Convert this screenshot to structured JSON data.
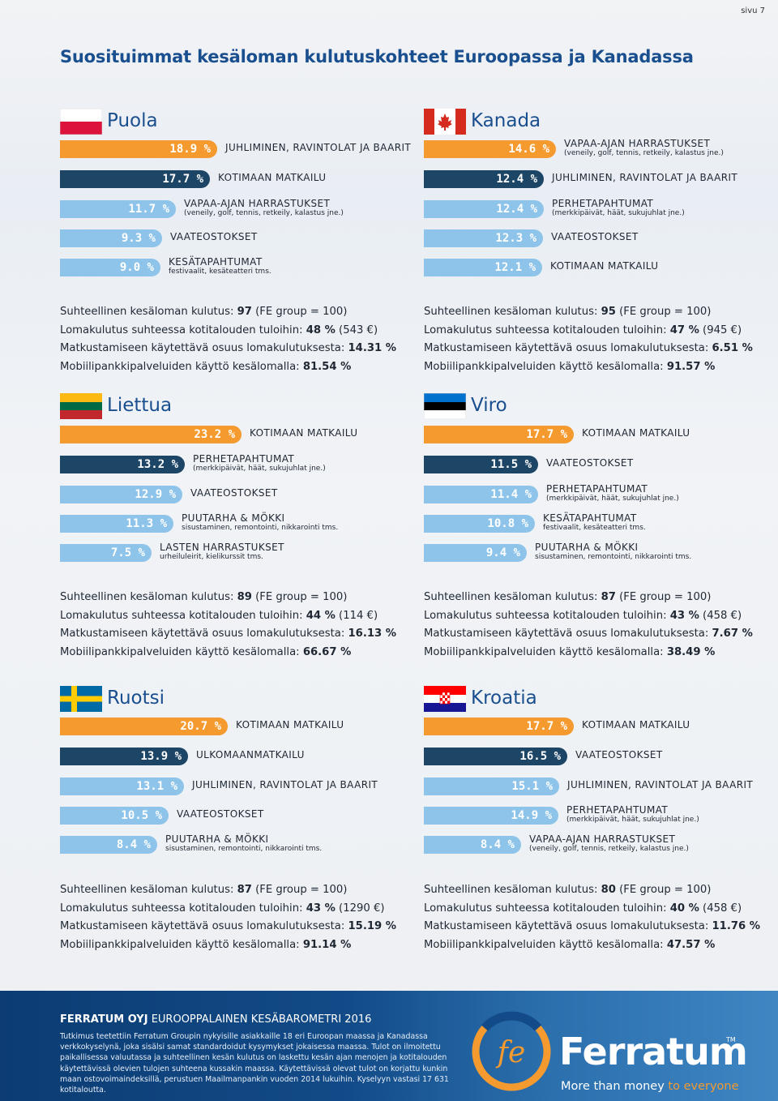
{
  "page": {
    "number": "sivu 7",
    "title": "Suosituimmat kesäloman kulutuskohteet Euroopassa ja Kanadassa"
  },
  "colors": {
    "orange": "#f59a2e",
    "navy": "#1d4566",
    "light_blue": "#8ec4ea",
    "title_blue": "#1a4f8f"
  },
  "chart_data": [
    {
      "type": "bar",
      "country": "Puola",
      "flag": "poland-flag",
      "categories": [
        "JUHLIMINEN, RAVINTOLAT JA BAARIT",
        "KOTIMAAN MATKAILU",
        "VAPAA-AJAN HARRASTUKSET",
        "VAATEOSTOKSET",
        "KESÄTAPAHTUMAT"
      ],
      "subs": [
        "",
        "",
        "(veneily, golf, tennis, retkeily, kalastus jne.)",
        "",
        "festivaalit, kesäteatteri tms."
      ],
      "values": [
        18.9,
        17.7,
        11.7,
        9.3,
        9.0
      ],
      "value_labels": [
        "18.9 %",
        "17.7 %",
        "11.7 %",
        "9.3 %",
        "9.0 %"
      ],
      "unit": "%"
    },
    {
      "type": "bar",
      "country": "Kanada",
      "flag": "canada-flag",
      "categories": [
        "VAPAA-AJAN HARRASTUKSET",
        "JUHLIMINEN, RAVINTOLAT JA BAARIT",
        "PERHETAPAHTUMAT",
        "VAATEOSTOKSET",
        "KOTIMAAN MATKAILU"
      ],
      "subs": [
        "(veneily, golf, tennis, retkeily, kalastus jne.)",
        "",
        "(merkkipäivät, häät, sukujuhlat jne.)",
        "",
        ""
      ],
      "values": [
        14.6,
        12.4,
        12.4,
        12.3,
        12.1
      ],
      "value_labels": [
        "14.6 %",
        "12.4 %",
        "12.4 %",
        "12.3 %",
        "12.1 %"
      ],
      "unit": "%"
    },
    {
      "type": "bar",
      "country": "Liettua",
      "flag": "lithuania-flag",
      "categories": [
        "KOTIMAAN MATKAILU",
        "PERHETAPAHTUMAT",
        "VAATEOSTOKSET",
        "PUUTARHA & MÖKKI",
        "LASTEN HARRASTUKSET"
      ],
      "subs": [
        "",
        "(merkkipäivät, häät, sukujuhlat jne.)",
        "",
        "sisustaminen, remontointi, nikkarointi tms.",
        "urheiluleirit, kielikurssit tms."
      ],
      "values": [
        23.2,
        13.2,
        12.9,
        11.3,
        7.5
      ],
      "value_labels": [
        "23.2 %",
        "13.2 %",
        "12.9 %",
        "11.3 %",
        "7.5 %"
      ],
      "unit": "%"
    },
    {
      "type": "bar",
      "country": "Viro",
      "flag": "estonia-flag",
      "categories": [
        "KOTIMAAN MATKAILU",
        "VAATEOSTOKSET",
        "PERHETAPAHTUMAT",
        "KESÄTAPAHTUMAT",
        "PUUTARHA & MÖKKI"
      ],
      "subs": [
        "",
        "",
        "(merkkipäivät, häät, sukujuhlat jne.)",
        "festivaalit, kesäteatteri tms.",
        "sisustaminen, remontointi, nikkarointi tms."
      ],
      "values": [
        17.7,
        11.5,
        11.4,
        10.8,
        9.4
      ],
      "value_labels": [
        "17.7 %",
        "11.5 %",
        "11.4 %",
        "10.8 %",
        "9.4 %"
      ],
      "unit": "%"
    },
    {
      "type": "bar",
      "country": "Ruotsi",
      "flag": "sweden-flag",
      "categories": [
        "KOTIMAAN MATKAILU",
        "ULKOMAANMATKAILU",
        "JUHLIMINEN, RAVINTOLAT JA BAARIT",
        "VAATEOSTOKSET",
        "PUUTARHA & MÖKKI"
      ],
      "subs": [
        "",
        "",
        "",
        "",
        "sisustaminen, remontointi, nikkarointi tms."
      ],
      "values": [
        20.7,
        13.9,
        13.1,
        10.5,
        8.4
      ],
      "value_labels": [
        "20.7 %",
        "13.9 %",
        "13.1 %",
        "10.5 %",
        "8.4 %"
      ],
      "unit": "%"
    },
    {
      "type": "bar",
      "country": "Kroatia",
      "flag": "croatia-flag",
      "categories": [
        "KOTIMAAN MATKAILU",
        "VAATEOSTOKSET",
        "JUHLIMINEN, RAVINTOLAT JA BAARIT",
        "PERHETAPAHTUMAT",
        "VAPAA-AJAN HARRASTUKSET"
      ],
      "subs": [
        "",
        "",
        "",
        "(merkkipäivät, häät, sukujuhlat jne.)",
        "(veneily, golf, tennis, retkeily, kalastus jne.)"
      ],
      "values": [
        17.7,
        16.5,
        15.1,
        14.9,
        8.4
      ],
      "value_labels": [
        "17.7 %",
        "16.5 %",
        "15.1 %",
        "14.9 %",
        "8.4 %"
      ],
      "unit": "%"
    }
  ],
  "stats": [
    {
      "rel_label": "Suhteellinen kesäloman kulutus: ",
      "rel_value": "97",
      "rel_suffix": " (FE group = 100)",
      "share_label": "Lomakulutus suhteessa kotitalouden tuloihin: ",
      "share_value": "48 %",
      "share_suffix": " (543 €)",
      "disp_label": "Matkustamiseen käytettävä osuus lomakulutuksesta: ",
      "disp_value": "14.31 %",
      "mob_label": "Mobiilipankkipalveluiden käyttö kesälomalla: ",
      "mob_value": "81.54 %"
    },
    {
      "rel_label": "Suhteellinen kesäloman kulutus: ",
      "rel_value": "95",
      "rel_suffix": " (FE group = 100)",
      "share_label": "Lomakulutus suhteessa kotitalouden tuloihin: ",
      "share_value": "47 %",
      "share_suffix": " (945 €)",
      "disp_label": "Matkustamiseen käytettävä osuus lomakulutuksesta: ",
      "disp_value": "6.51 %",
      "mob_label": "Mobiilipankkipalveluiden käyttö kesälomalla: ",
      "mob_value": "91.57 %"
    },
    {
      "rel_label": "Suhteellinen kesäloman kulutus: ",
      "rel_value": "89",
      "rel_suffix": " (FE group = 100)",
      "share_label": "Lomakulutus suhteessa kotitalouden tuloihin: ",
      "share_value": "44 %",
      "share_suffix": " (114 €)",
      "disp_label": "Matkustamiseen käytettävä osuus lomakulutuksesta: ",
      "disp_value": "16.13 %",
      "mob_label": "Mobiilipankkipalveluiden käyttö kesälomalla: ",
      "mob_value": "66.67 %"
    },
    {
      "rel_label": "Suhteellinen kesäloman kulutus: ",
      "rel_value": "87",
      "rel_suffix": " (FE group = 100)",
      "share_label": "Lomakulutus suhteessa kotitalouden tuloihin: ",
      "share_value": "43 %",
      "share_suffix": " (458 €)",
      "disp_label": "Matkustamiseen käytettävä osuus lomakulutuksesta: ",
      "disp_value": "7.67 %",
      "mob_label": "Mobiilipankkipalveluiden käyttö kesälomalla: ",
      "mob_value": "38.49 %"
    },
    {
      "rel_label": "Suhteellinen kesäloman kulutus: ",
      "rel_value": "87",
      "rel_suffix": " (FE group = 100)",
      "share_label": "Lomakulutus suhteessa kotitalouden tuloihin: ",
      "share_value": "43 %",
      "share_suffix": " (1290 €)",
      "disp_label": "Matkustamiseen käytettävä osuus lomakulutuksesta: ",
      "disp_value": "15.19 %",
      "mob_label": "Mobiilipankkipalveluiden käyttö kesälomalla: ",
      "mob_value": "91.14 %"
    },
    {
      "rel_label": "Suhteellinen kesäloman kulutus: ",
      "rel_value": "80",
      "rel_suffix": " (FE group = 100)",
      "share_label": "Lomakulutus suhteessa kotitalouden tuloihin: ",
      "share_value": "40 %",
      "share_suffix": " (458 €)",
      "disp_label": "Matkustamiseen käytettävä osuus lomakulutuksesta: ",
      "disp_value": "11.76 %",
      "mob_label": "Mobiilipankkipalveluiden käyttö kesälomalla: ",
      "mob_value": "47.57 %"
    }
  ],
  "footer": {
    "title_bold": "FERRATUM OYJ",
    "title_rest": " EUROOPPALAINEN KESÄBAROMETRI 2016",
    "text": "Tutkimus teetettiin Ferratum Groupin nykyisille asiakkaille 18 eri Euroopan maassa ja Kanadassa verkkokyselynä, joka sisälsi samat standardoidut kysymykset jokaisessa maassa. Tulot on ilmoitettu paikallisessa valuutassa ja suhteellinen kesän kulutus on laskettu kesän ajan menojen ja kotitalouden käytettävissä olevien tulojen suhteena kussakin maassa. Käytettävissä olevat tulot on korjattu kunkin maan ostovoimaindeksillä, perustuen Maailmanpankin vuoden 2014 lukuihin. Kyselyyn vastasi 17 631 kotitaloutta.",
    "logo_mark": "fe",
    "logo_name": "Ferratum",
    "logo_tm": "TM",
    "tagline_main": "More than money ",
    "tagline_accent": "to everyone"
  }
}
